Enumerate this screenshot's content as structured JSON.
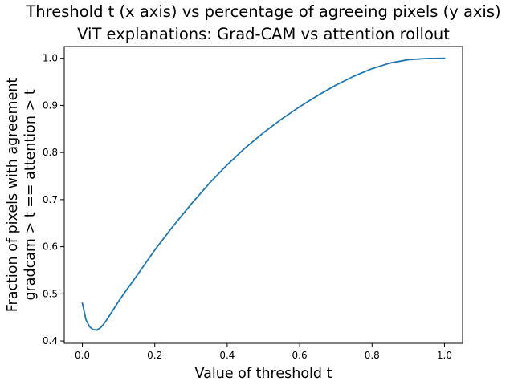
{
  "chart_data": {
    "type": "line",
    "title_lines": [
      "Threshold t (x axis) vs percentage of agreeing pixels (y axis)",
      "ViT explanations: Grad-CAM vs attention rollout"
    ],
    "xlabel": "Value of threshold t",
    "ylabel_lines": [
      "Fraction of pixels with agreement",
      "gradcam > t == attention > t"
    ],
    "xlim": [
      -0.05,
      1.05
    ],
    "ylim": [
      0.395,
      1.025
    ],
    "xticks": [
      0.0,
      0.2,
      0.4,
      0.6,
      0.8,
      1.0
    ],
    "xtick_labels": [
      "0.0",
      "0.2",
      "0.4",
      "0.6",
      "0.8",
      "1.0"
    ],
    "yticks": [
      0.4,
      0.5,
      0.6,
      0.7,
      0.8,
      0.9,
      1.0
    ],
    "ytick_labels": [
      "0.4",
      "0.5",
      "0.6",
      "0.7",
      "0.8",
      "0.9",
      "1.0"
    ],
    "grid": false,
    "line_color": "#1f77b4",
    "series": [
      {
        "x": [
          0.0,
          0.01,
          0.02,
          0.03,
          0.04,
          0.05,
          0.06,
          0.07,
          0.08,
          0.1,
          0.12,
          0.15,
          0.2,
          0.25,
          0.3,
          0.35,
          0.4,
          0.45,
          0.5,
          0.55,
          0.6,
          0.65,
          0.7,
          0.75,
          0.8,
          0.85,
          0.9,
          0.95,
          1.0
        ],
        "y": [
          0.48,
          0.445,
          0.43,
          0.424,
          0.423,
          0.428,
          0.437,
          0.448,
          0.46,
          0.484,
          0.506,
          0.538,
          0.593,
          0.643,
          0.69,
          0.734,
          0.774,
          0.81,
          0.842,
          0.871,
          0.897,
          0.921,
          0.943,
          0.962,
          0.978,
          0.99,
          0.997,
          0.9995,
          1.0
        ]
      }
    ]
  }
}
